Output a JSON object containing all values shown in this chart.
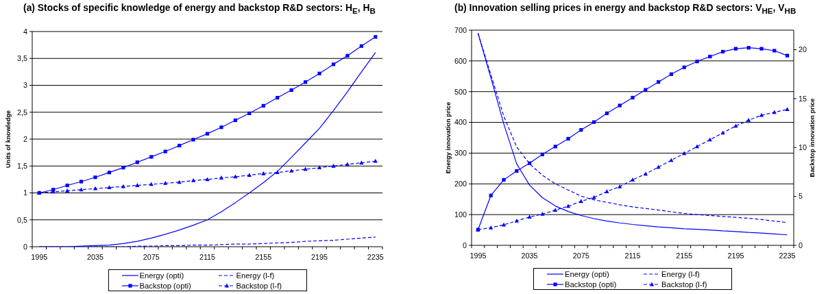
{
  "chart_data": [
    {
      "type": "line",
      "title": "(a) Stocks of specific knowledge of energy and backstop R&D sectors: H$_{E}$, H$_{B}$",
      "ylabel": "Units of knowledge",
      "categories": [
        "1995",
        null,
        null,
        null,
        "2035",
        null,
        null,
        null,
        "2075",
        null,
        null,
        null,
        "2115",
        null,
        null,
        null,
        "2155",
        null,
        null,
        null,
        "2195",
        null,
        null,
        null,
        "2235"
      ],
      "ylim": [
        0,
        4
      ],
      "yticks": [
        0,
        {
          "value": 0.5,
          "label": "0,5"
        },
        1,
        {
          "value": 1.5,
          "label": "1,5"
        },
        2,
        {
          "value": 2.5,
          "label": "2,5"
        },
        3,
        {
          "value": 3.5,
          "label": "3,5"
        },
        4
      ],
      "grid": "y",
      "legend": "bottom",
      "series": [
        {
          "name": "Energy (opti)",
          "color": "#0000ff",
          "line_style": "solid",
          "marker": "none",
          "values": [
            0,
            0,
            0,
            0.01,
            0.02,
            0.03,
            0.06,
            0.1,
            0.16,
            0.23,
            0.31,
            0.4,
            0.5,
            0.65,
            0.82,
            1,
            1.19,
            1.4,
            1.66,
            1.93,
            2.2,
            2.53,
            2.88,
            3.25,
            3.61
          ]
        },
        {
          "name": "Energy (l-f)",
          "color": "#0000ff",
          "line_style": "dashed",
          "marker": "none",
          "values": [
            0,
            0,
            0,
            0,
            0,
            0,
            0,
            0.01,
            0.01,
            0.02,
            0.02,
            0.03,
            0.03,
            0.04,
            0.05,
            0.05,
            0.06,
            0.07,
            0.08,
            0.1,
            0.11,
            0.12,
            0.14,
            0.16,
            0.18
          ]
        },
        {
          "name": "Backstop (opti)",
          "color": "#0000ff",
          "line_style": "solid",
          "marker": "square",
          "values": [
            1,
            1.06,
            1.14,
            1.21,
            1.29,
            1.38,
            1.47,
            1.57,
            1.67,
            1.77,
            1.88,
            1.99,
            2.1,
            2.22,
            2.35,
            2.48,
            2.62,
            2.77,
            2.91,
            3.06,
            3.22,
            3.39,
            3.55,
            3.73,
            3.9
          ]
        },
        {
          "name": "Backstop (l-f)",
          "color": "#0000ff",
          "line_style": "dashed",
          "marker": "triangle",
          "values": [
            1,
            1.02,
            1.04,
            1.06,
            1.08,
            1.1,
            1.12,
            1.14,
            1.16,
            1.18,
            1.2,
            1.23,
            1.25,
            1.28,
            1.3,
            1.33,
            1.36,
            1.38,
            1.41,
            1.44,
            1.47,
            1.5,
            1.53,
            1.56,
            1.59
          ]
        }
      ]
    },
    {
      "type": "line",
      "title": "(b) Innovation selling prices in energy and backstop R&D sectors: V$_{HE}$, V$_{HB}$",
      "ylabel": "Energy innovation price",
      "y2label": "Backstop innovation price",
      "categories": [
        "1995",
        null,
        null,
        null,
        "2035",
        null,
        null,
        null,
        "2075",
        null,
        null,
        null,
        "2115",
        null,
        null,
        null,
        "2155",
        null,
        null,
        null,
        "2195",
        null,
        null,
        null,
        "2235"
      ],
      "ylim": [
        0,
        700
      ],
      "yticks": [
        0,
        100,
        200,
        300,
        400,
        500,
        600,
        700
      ],
      "y2lim": [
        0,
        22
      ],
      "y2ticks": [
        0,
        5,
        10,
        15,
        20
      ],
      "grid": "y",
      "legend": "bottom",
      "series": [
        {
          "name": "Energy (opti)",
          "color": "#0000ff",
          "line_style": "solid",
          "marker": "none",
          "values": [
            690,
            545,
            395,
            265,
            196,
            155,
            128,
            110,
            97,
            87,
            79,
            73,
            68,
            64,
            60,
            57,
            54,
            52,
            50,
            47,
            45,
            42,
            40,
            37,
            34
          ]
        },
        {
          "name": "Energy (l-f)",
          "color": "#0000ff",
          "line_style": "dashed",
          "marker": "none",
          "values": [
            690,
            555,
            420,
            320,
            265,
            228,
            200,
            180,
            160,
            148,
            140,
            132,
            125,
            120,
            115,
            109,
            104,
            100,
            97,
            94,
            91,
            88,
            84,
            79,
            74
          ]
        },
        {
          "name": "Backstop (opti)",
          "color": "#0000ff",
          "line_style": "solid",
          "marker": "square",
          "axis": "y2",
          "values": [
            1.6,
            5.1,
            6.7,
            7.6,
            8.4,
            9.3,
            10.1,
            10.9,
            11.8,
            12.6,
            13.5,
            14.3,
            15.1,
            15.9,
            16.7,
            17.5,
            18.2,
            18.8,
            19.3,
            19.8,
            20.1,
            20.2,
            20.1,
            19.9,
            19.4
          ]
        },
        {
          "name": "Backstop (l-f)",
          "color": "#0000ff",
          "line_style": "dashed",
          "marker": "triangle",
          "axis": "y2",
          "values": [
            1.6,
            1.8,
            2.1,
            2.5,
            2.9,
            3.2,
            3.6,
            4,
            4.5,
            4.9,
            5.5,
            6,
            6.7,
            7.3,
            8,
            8.7,
            9.4,
            10.1,
            10.8,
            11.5,
            12.2,
            12.8,
            13.3,
            13.6,
            13.9
          ]
        }
      ]
    }
  ]
}
